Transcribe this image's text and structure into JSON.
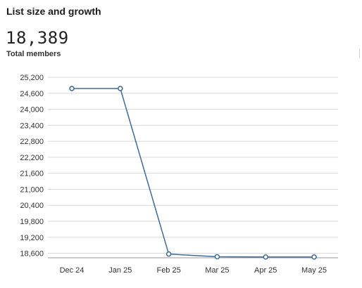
{
  "header": {
    "title": "List size and growth",
    "total_value": "18,389",
    "total_label": "Total members"
  },
  "colors": {
    "line": "#3b6b9c",
    "grid": "#d9d9d9",
    "axis": "#999999"
  },
  "chart_data": {
    "type": "line",
    "categories": [
      "Dec 24",
      "Jan 25",
      "Feb 25",
      "Mar 25",
      "Apr 25",
      "May 25"
    ],
    "values": [
      24780,
      24780,
      18570,
      18470,
      18460,
      18460
    ],
    "ylim": [
      18430,
      25200
    ],
    "yticks": [
      18600,
      19200,
      19800,
      20400,
      21000,
      21600,
      22200,
      22800,
      23400,
      24000,
      24600,
      25200
    ],
    "ytick_labels": [
      "18,600",
      "19,200",
      "19,800",
      "20,400",
      "21,000",
      "21,600",
      "22,200",
      "22,800",
      "23,400",
      "24,000",
      "24,600",
      "25,200"
    ],
    "grid": true,
    "legend": "none"
  }
}
